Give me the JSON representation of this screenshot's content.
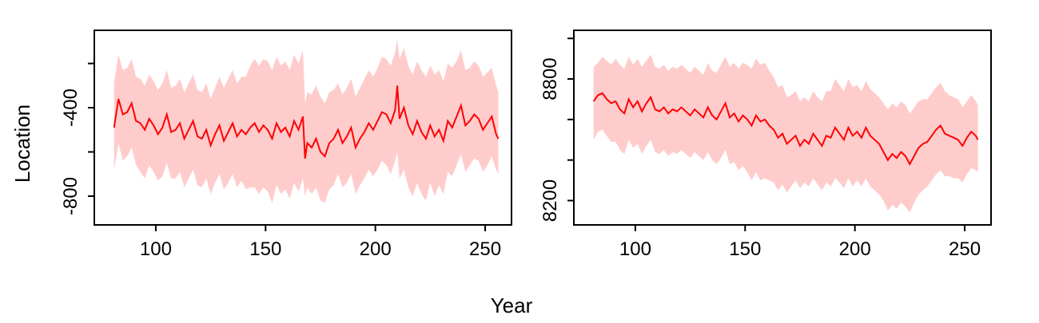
{
  "figure": {
    "xlabel": "Year",
    "ylabel": "Location",
    "line_color": "#ff0000",
    "band_color": "#ffcccc"
  },
  "chart_data": [
    {
      "type": "line",
      "xlim": [
        72,
        262
      ],
      "ylim": [
        -930,
        -50
      ],
      "xticks": [
        100,
        150,
        200,
        250
      ],
      "yticks": [
        -800,
        -600,
        -400,
        -200
      ],
      "ytick_labels": [
        "-800",
        "",
        "-400",
        ""
      ],
      "series": [
        {
          "x": [
            81,
            83,
            85,
            87,
            89,
            91,
            93,
            95,
            97,
            99,
            101,
            103,
            105,
            107,
            109,
            111,
            113,
            115,
            117,
            119,
            121,
            123,
            125,
            127,
            129,
            131,
            133,
            135,
            137,
            139,
            141,
            143,
            145,
            147,
            149,
            151,
            153,
            155,
            157,
            159,
            161,
            163,
            165,
            167,
            168,
            169,
            171,
            173,
            175,
            177,
            179,
            181,
            183,
            185,
            187,
            189,
            191,
            193,
            195,
            197,
            199,
            201,
            203,
            205,
            207,
            209,
            210,
            211,
            213,
            215,
            217,
            219,
            221,
            223,
            225,
            227,
            229,
            231,
            233,
            235,
            237,
            239,
            241,
            243,
            245,
            247,
            249,
            251,
            253,
            255,
            256
          ],
          "y": [
            -490,
            -360,
            -430,
            -420,
            -380,
            -460,
            -470,
            -500,
            -450,
            -480,
            -520,
            -490,
            -430,
            -510,
            -500,
            -470,
            -540,
            -500,
            -460,
            -530,
            -540,
            -500,
            -570,
            -520,
            -480,
            -550,
            -510,
            -470,
            -530,
            -500,
            -520,
            -490,
            -470,
            -510,
            -480,
            -500,
            -540,
            -470,
            -510,
            -490,
            -530,
            -460,
            -500,
            -440,
            -630,
            -560,
            -580,
            -540,
            -600,
            -620,
            -560,
            -540,
            -500,
            -560,
            -530,
            -490,
            -580,
            -540,
            -510,
            -470,
            -500,
            -460,
            -420,
            -430,
            -470,
            -410,
            -300,
            -450,
            -400,
            -480,
            -520,
            -460,
            -510,
            -540,
            -480,
            -530,
            -500,
            -550,
            -460,
            -490,
            -440,
            -390,
            -480,
            -460,
            -430,
            -450,
            -500,
            -470,
            -440,
            -520,
            -540
          ],
          "lower": [
            -680,
            -560,
            -640,
            -620,
            -580,
            -660,
            -690,
            -720,
            -660,
            -690,
            -730,
            -710,
            -650,
            -720,
            -720,
            -690,
            -760,
            -720,
            -680,
            -750,
            -760,
            -720,
            -790,
            -740,
            -700,
            -770,
            -740,
            -700,
            -760,
            -730,
            -770,
            -760,
            -760,
            -790,
            -760,
            -780,
            -830,
            -750,
            -790,
            -770,
            -810,
            -740,
            -780,
            -720,
            -800,
            -760,
            -790,
            -760,
            -820,
            -830,
            -770,
            -750,
            -700,
            -760,
            -740,
            -700,
            -790,
            -750,
            -720,
            -680,
            -710,
            -680,
            -640,
            -660,
            -700,
            -640,
            -600,
            -720,
            -680,
            -760,
            -800,
            -740,
            -790,
            -820,
            -740,
            -800,
            -750,
            -790,
            -690,
            -710,
            -660,
            -610,
            -690,
            -660,
            -630,
            -640,
            -690,
            -660,
            -620,
            -680,
            -700
          ],
          "upper": [
            -290,
            -160,
            -230,
            -220,
            -180,
            -260,
            -270,
            -300,
            -250,
            -280,
            -320,
            -290,
            -230,
            -310,
            -300,
            -270,
            -330,
            -290,
            -250,
            -320,
            -330,
            -290,
            -360,
            -310,
            -260,
            -310,
            -270,
            -230,
            -290,
            -260,
            -260,
            -210,
            -180,
            -210,
            -180,
            -190,
            -230,
            -170,
            -210,
            -190,
            -230,
            -160,
            -200,
            -140,
            -380,
            -330,
            -340,
            -300,
            -350,
            -380,
            -330,
            -320,
            -290,
            -340,
            -310,
            -270,
            -350,
            -310,
            -270,
            -230,
            -260,
            -220,
            -170,
            -180,
            -210,
            -150,
            -90,
            -180,
            -130,
            -210,
            -250,
            -190,
            -230,
            -260,
            -210,
            -250,
            -230,
            -280,
            -200,
            -220,
            -190,
            -140,
            -230,
            -220,
            -190,
            -210,
            -260,
            -240,
            -220,
            -300,
            -330
          ]
        }
      ]
    },
    {
      "type": "line",
      "xlim": [
        72,
        262
      ],
      "ylim": [
        8080,
        9040
      ],
      "xticks": [
        100,
        150,
        200,
        250
      ],
      "yticks": [
        8200,
        8400,
        8600,
        8800,
        9000
      ],
      "ytick_labels": [
        "8200",
        "",
        "",
        "8800",
        ""
      ],
      "series": [
        {
          "x": [
            81,
            83,
            85,
            87,
            89,
            91,
            93,
            95,
            97,
            99,
            101,
            103,
            105,
            107,
            109,
            111,
            113,
            115,
            117,
            119,
            121,
            123,
            125,
            127,
            129,
            131,
            133,
            135,
            137,
            139,
            141,
            143,
            145,
            147,
            149,
            151,
            153,
            155,
            157,
            159,
            161,
            163,
            165,
            167,
            169,
            171,
            173,
            175,
            177,
            179,
            181,
            183,
            185,
            187,
            189,
            191,
            193,
            195,
            197,
            199,
            201,
            203,
            205,
            207,
            209,
            211,
            213,
            215,
            217,
            219,
            221,
            223,
            225,
            227,
            229,
            231,
            233,
            235,
            237,
            239,
            241,
            243,
            245,
            247,
            249,
            251,
            253,
            255,
            256
          ],
          "y": [
            8690,
            8720,
            8730,
            8700,
            8680,
            8690,
            8650,
            8630,
            8700,
            8660,
            8690,
            8640,
            8680,
            8710,
            8650,
            8640,
            8660,
            8630,
            8650,
            8640,
            8660,
            8640,
            8620,
            8650,
            8630,
            8610,
            8660,
            8620,
            8600,
            8640,
            8680,
            8610,
            8630,
            8590,
            8620,
            8600,
            8570,
            8620,
            8590,
            8600,
            8570,
            8550,
            8510,
            8530,
            8480,
            8500,
            8520,
            8470,
            8500,
            8480,
            8530,
            8500,
            8470,
            8520,
            8510,
            8560,
            8530,
            8500,
            8560,
            8520,
            8540,
            8510,
            8560,
            8520,
            8500,
            8480,
            8440,
            8400,
            8430,
            8410,
            8440,
            8420,
            8380,
            8420,
            8460,
            8480,
            8490,
            8520,
            8550,
            8570,
            8530,
            8520,
            8510,
            8500,
            8470,
            8510,
            8540,
            8520,
            8500
          ],
          "lower": [
            8500,
            8540,
            8550,
            8520,
            8490,
            8490,
            8450,
            8430,
            8500,
            8460,
            8480,
            8430,
            8470,
            8500,
            8440,
            8430,
            8450,
            8420,
            8440,
            8430,
            8450,
            8430,
            8410,
            8440,
            8420,
            8400,
            8440,
            8400,
            8380,
            8410,
            8450,
            8380,
            8390,
            8350,
            8370,
            8340,
            8300,
            8340,
            8300,
            8310,
            8300,
            8290,
            8250,
            8280,
            8240,
            8270,
            8300,
            8260,
            8290,
            8270,
            8310,
            8280,
            8250,
            8290,
            8270,
            8310,
            8290,
            8260,
            8310,
            8270,
            8300,
            8270,
            8310,
            8270,
            8250,
            8230,
            8200,
            8150,
            8180,
            8160,
            8190,
            8170,
            8140,
            8190,
            8230,
            8250,
            8270,
            8300,
            8330,
            8350,
            8320,
            8320,
            8310,
            8310,
            8290,
            8330,
            8360,
            8350,
            8340
          ],
          "upper": [
            8860,
            8880,
            8910,
            8890,
            8870,
            8900,
            8870,
            8850,
            8910,
            8870,
            8900,
            8860,
            8890,
            8920,
            8860,
            8850,
            8870,
            8840,
            8860,
            8850,
            8870,
            8850,
            8830,
            8860,
            8840,
            8820,
            8880,
            8840,
            8830,
            8870,
            8910,
            8860,
            8880,
            8850,
            8880,
            8870,
            8850,
            8900,
            8870,
            8880,
            8840,
            8810,
            8760,
            8770,
            8710,
            8720,
            8740,
            8690,
            8710,
            8690,
            8740,
            8710,
            8690,
            8740,
            8740,
            8800,
            8770,
            8740,
            8800,
            8760,
            8770,
            8740,
            8790,
            8750,
            8730,
            8710,
            8680,
            8650,
            8680,
            8660,
            8690,
            8670,
            8630,
            8660,
            8690,
            8700,
            8700,
            8730,
            8760,
            8780,
            8740,
            8720,
            8710,
            8700,
            8660,
            8690,
            8720,
            8690,
            8670
          ]
        }
      ]
    }
  ]
}
